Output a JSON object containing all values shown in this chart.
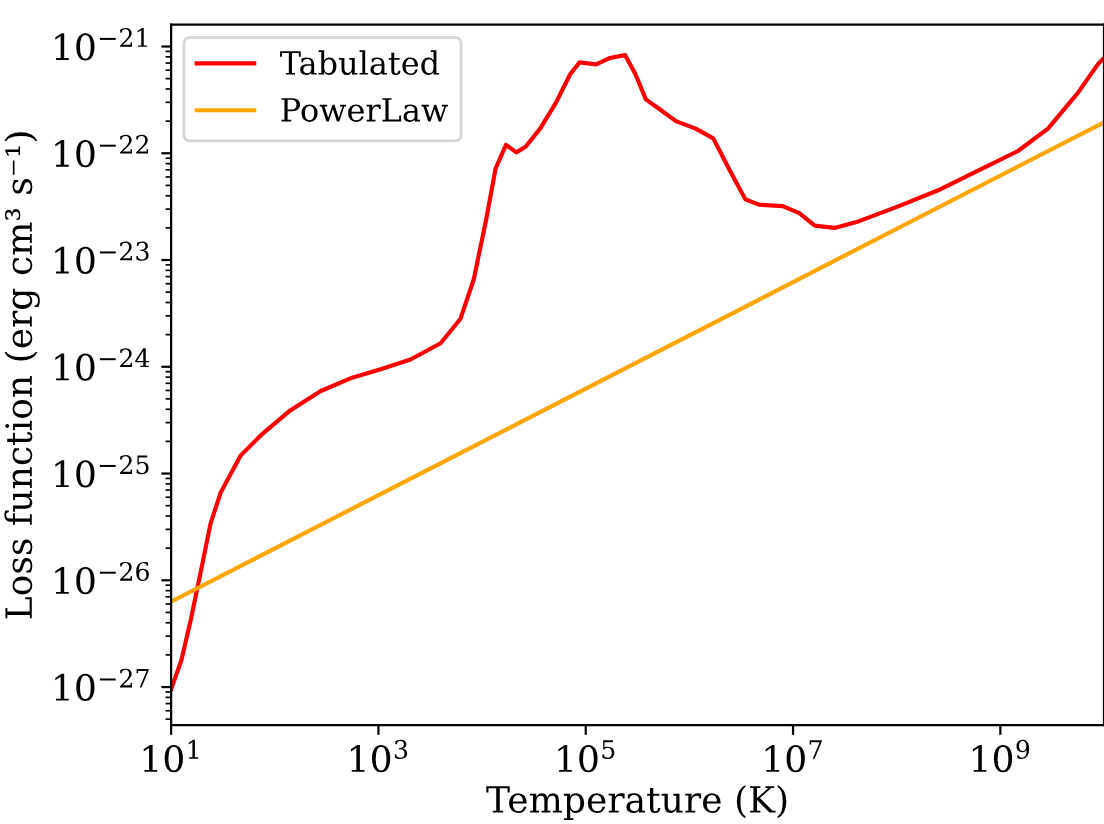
{
  "chart_data": {
    "type": "line",
    "xlabel": "Temperature (K)",
    "ylabel": "Loss function (erg cm³ s⁻¹)",
    "log": "xy",
    "legend": "top left",
    "grid": false,
    "marker": "none",
    "line_style": "solid",
    "xlim": [
      10,
      10000000000.0
    ],
    "ylim": [
      4.4e-28,
      1.6e-21
    ],
    "xticks": [
      {
        "value": 10,
        "label": "10$^{1}$"
      },
      {
        "value": 1000,
        "label": "10$^{3}$"
      },
      {
        "value": 100000,
        "label": "10$^{5}$"
      },
      {
        "value": 10000000,
        "label": "10$^{7}$"
      },
      {
        "value": 1000000000,
        "label": "10$^{9}$"
      }
    ],
    "yticks": [
      {
        "value": 1e-27,
        "label": "10$^{−27}$"
      },
      {
        "value": 1e-26,
        "label": "10$^{−26}$"
      },
      {
        "value": 1e-25,
        "label": "10$^{−25}$"
      },
      {
        "value": 1e-24,
        "label": "10$^{−24}$"
      },
      {
        "value": 1e-23,
        "label": "10$^{−23}$"
      },
      {
        "value": 1e-22,
        "label": "10$^{−22}$"
      },
      {
        "value": 1e-21,
        "label": "10$^{−21}$"
      }
    ],
    "series": [
      {
        "name": "Tabulated",
        "color": "#ff0000",
        "x": [
          10,
          12.6,
          15.5,
          19.5,
          24,
          30,
          47,
          74,
          141,
          275,
          537,
          1050,
          2040,
          3980,
          6170,
          8320,
          11000.0,
          13500.0,
          17000.0,
          21400.0,
          26300.0,
          36300.0,
          51300.0,
          70800.0,
          87100.0,
          126000.0,
          170000.0,
          240000.0,
          302000.0,
          380000.0,
          513000.0,
          741000.0,
          1150000.0,
          1700000.0,
          2400000.0,
          3470000.0,
          4680000.0,
          7940000.0,
          11500000.0,
          16200000.0,
          25100000.0,
          42700000.0,
          105000000.0,
          251000000.0,
          617000000.0,
          1480000000.0,
          2880000000.0,
          5620000000.0,
          8710000000.0,
          10000000000.0
        ],
        "values": [
          9.5e-28,
          1.8e-27,
          4.3e-27,
          1.26e-26,
          3.4e-26,
          6.6e-26,
          1.48e-25,
          2.3e-25,
          3.9e-25,
          5.9e-25,
          7.8e-25,
          9.5e-25,
          1.17e-24,
          1.66e-24,
          2.8e-24,
          6.6e-24,
          2.45e-23,
          7.2e-23,
          1.2e-22,
          1.02e-22,
          1.15e-22,
          1.7e-22,
          2.95e-22,
          5.5e-22,
          7.1e-22,
          6.8e-22,
          7.8e-22,
          8.3e-22,
          5.5e-22,
          3.2e-22,
          2.6e-22,
          2e-22,
          1.7e-22,
          1.38e-22,
          7.2e-23,
          3.7e-23,
          3.3e-23,
          3.2e-23,
          2.75e-23,
          2.1e-23,
          2e-23,
          2.3e-23,
          3.2e-23,
          4.5e-23,
          6.9e-23,
          1.05e-22,
          1.7e-22,
          3.7e-22,
          6.8e-22,
          7.8e-22
        ]
      },
      {
        "name": "PowerLaw",
        "color": "#ffa500",
        "x": [
          10,
          10000000000.0
        ],
        "values": [
          6.3e-27,
          1.95e-22
        ]
      }
    ]
  }
}
